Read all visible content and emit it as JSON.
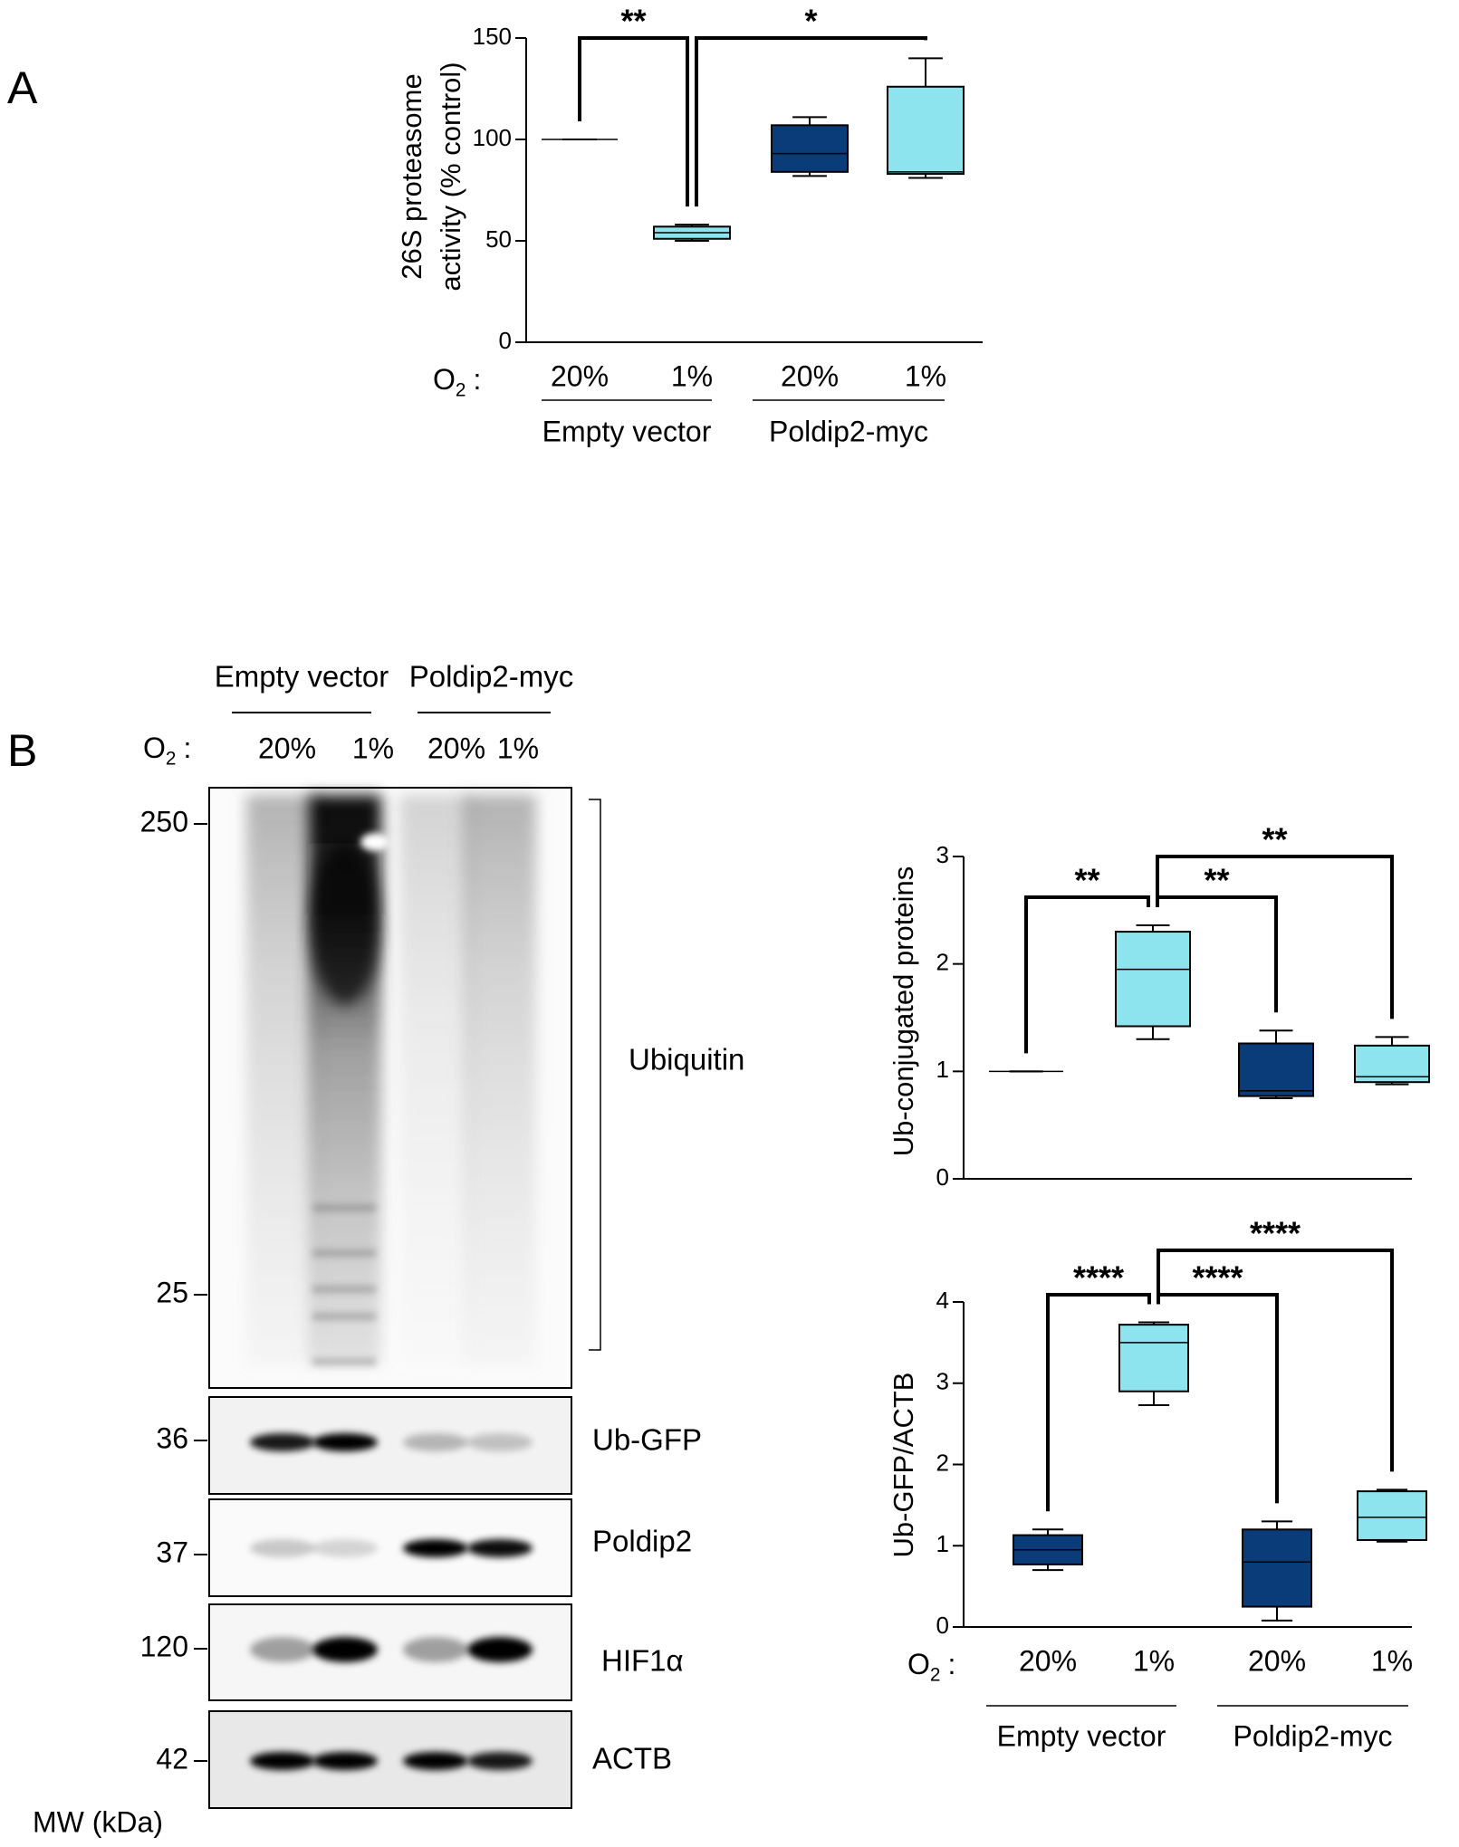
{
  "panel_labels": [
    "A",
    "B"
  ],
  "chart_data": [
    {
      "type": "box",
      "ylabel": [
        "26S proteasome",
        "activity (% control)"
      ],
      "ylim": [
        0,
        150
      ],
      "yticks": [
        0,
        50,
        100,
        150
      ],
      "condition_label": [
        "O",
        "2",
        ":"
      ],
      "categories": [
        "20%",
        "1%",
        "20%",
        "1%"
      ],
      "groups": [
        "Empty vector",
        "Poldip2-myc"
      ],
      "colors": [
        "#000000",
        "#8de4ee",
        "#0b3c7a",
        "#8de4ee"
      ],
      "boxes": [
        {
          "min": 100,
          "q1": 100,
          "median": 100,
          "q3": 100,
          "max": 100
        },
        {
          "min": 50,
          "q1": 51,
          "median": 54,
          "q3": 57,
          "max": 58
        },
        {
          "min": 82,
          "q1": 84,
          "median": 93,
          "q3": 107,
          "max": 111
        },
        {
          "min": 81,
          "q1": 83,
          "median": 84,
          "q3": 126,
          "max": 140
        }
      ],
      "significance": [
        "**",
        "*"
      ]
    },
    {
      "type": "box",
      "ylabel": [
        "Ub-conjugated proteins"
      ],
      "ylim": [
        0,
        3
      ],
      "yticks": [
        0,
        1,
        2,
        3
      ],
      "colors": [
        "#000000",
        "#8de4ee",
        "#0b3c7a",
        "#8de4ee"
      ],
      "boxes": [
        {
          "min": 1,
          "q1": 1,
          "median": 1,
          "q3": 1,
          "max": 1
        },
        {
          "min": 1.3,
          "q1": 1.42,
          "median": 1.95,
          "q3": 2.3,
          "max": 2.36
        },
        {
          "min": 0.75,
          "q1": 0.77,
          "median": 0.82,
          "q3": 1.26,
          "max": 1.38
        },
        {
          "min": 0.88,
          "q1": 0.9,
          "median": 0.95,
          "q3": 1.24,
          "max": 1.32
        }
      ],
      "significance": [
        "**",
        "**",
        "**"
      ]
    },
    {
      "type": "box",
      "ylabel": [
        "Ub-GFP/ACTB"
      ],
      "ylim": [
        0,
        4
      ],
      "yticks": [
        0,
        1,
        2,
        3,
        4
      ],
      "condition_label": [
        "O",
        "2",
        ":"
      ],
      "categories": [
        "20%",
        "1%",
        "20%",
        "1%"
      ],
      "groups": [
        "Empty vector",
        "Poldip2-myc"
      ],
      "colors": [
        "#0b3c7a",
        "#8de4ee",
        "#0b3c7a",
        "#8de4ee"
      ],
      "boxes": [
        {
          "min": 0.7,
          "q1": 0.77,
          "median": 0.95,
          "q3": 1.13,
          "max": 1.2
        },
        {
          "min": 2.73,
          "q1": 2.9,
          "median": 3.5,
          "q3": 3.72,
          "max": 3.75
        },
        {
          "min": 0.08,
          "q1": 0.25,
          "median": 0.8,
          "q3": 1.2,
          "max": 1.3
        },
        {
          "min": 1.05,
          "q1": 1.07,
          "median": 1.35,
          "q3": 1.67,
          "max": 1.69
        }
      ],
      "significance": [
        "****",
        "****",
        "****"
      ]
    }
  ],
  "blot": {
    "groups": [
      "Empty vector",
      "Poldip2-myc"
    ],
    "condition_label": [
      "O",
      "2",
      ":"
    ],
    "lanes": [
      "20%",
      "1%",
      "20%",
      "1%"
    ],
    "markers": [
      "250",
      "25",
      "36",
      "37",
      "120",
      "42"
    ],
    "proteins": [
      "Ubiquitin",
      "Ub-GFP",
      "Poldip2",
      "HIF1α",
      "ACTB"
    ],
    "mw_label": "MW (kDa)"
  }
}
